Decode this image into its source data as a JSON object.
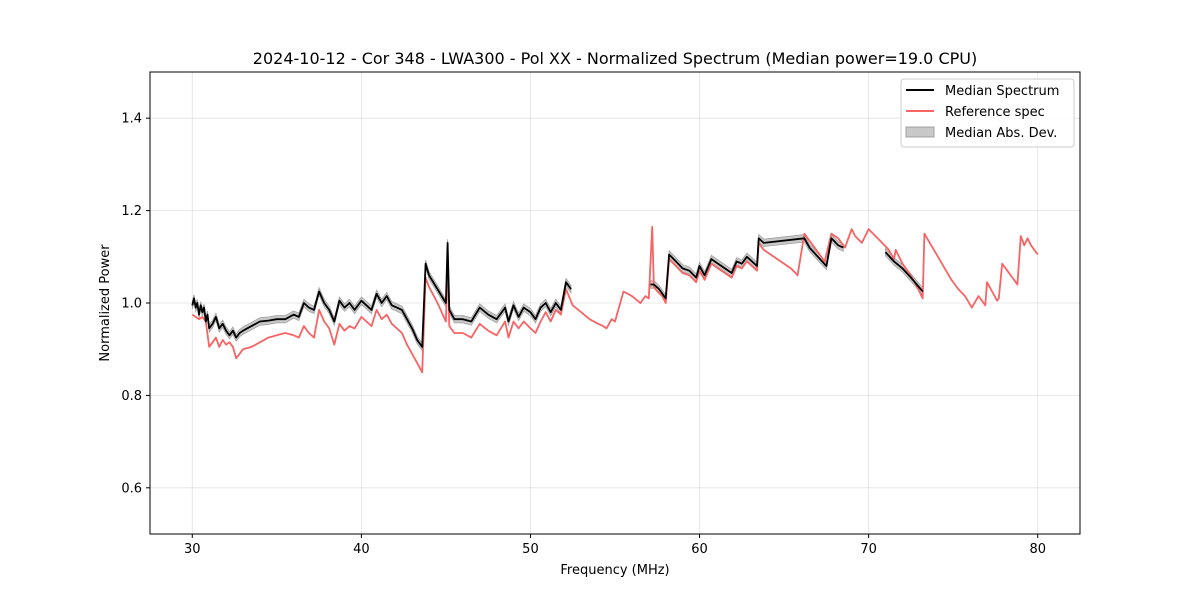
{
  "chart_data": {
    "type": "line",
    "title": "2024-10-12 - Cor 348 - LWA300 - Pol XX - Normalized Spectrum (Median power=19.0 CPU)",
    "xlabel": "Frequency (MHz)",
    "ylabel": "Normalized Power",
    "xlim": [
      27.5,
      82.5
    ],
    "ylim": [
      0.5,
      1.5
    ],
    "xticks": [
      30,
      40,
      50,
      60,
      70,
      80
    ],
    "yticks": [
      0.6,
      0.8,
      1.0,
      1.2,
      1.4
    ],
    "xtick_labels": [
      "30",
      "40",
      "50",
      "60",
      "70",
      "80"
    ],
    "ytick_labels": [
      "0.6",
      "0.8",
      "1.0",
      "1.2",
      "1.4"
    ],
    "grid": true,
    "legend_position": "top-right",
    "legend": [
      "Median Spectrum",
      "Reference spec",
      "Median Abs. Dev."
    ],
    "colors": {
      "median": "#000000",
      "reference": "#f86464",
      "mad_fill": "#c8c8c8",
      "mad_edge": "#a0a0a0"
    },
    "series": [
      {
        "name": "Median Spectrum",
        "segments": [
          {
            "x": [
              30.0,
              30.1,
              30.2,
              30.3,
              30.4,
              30.5,
              30.6,
              30.7,
              30.8,
              30.9,
              31.0,
              31.2,
              31.4,
              31.6,
              31.8,
              32.0,
              32.2,
              32.4,
              32.6,
              32.8,
              33.0,
              33.5,
              34.0,
              34.5,
              35.0,
              35.5,
              36.0,
              36.3,
              36.6,
              36.9,
              37.2,
              37.5,
              37.8,
              38.1,
              38.4,
              38.7,
              39.0,
              39.3,
              39.6,
              40.0,
              40.3,
              40.6,
              40.9,
              41.2,
              41.5,
              41.8,
              42.1,
              42.4,
              42.7,
              43.0,
              43.3,
              43.6,
              43.8,
              44.0,
              44.5,
              45.0,
              45.1,
              45.2,
              45.5,
              46.0,
              46.5,
              47.0,
              47.5,
              48.0,
              48.5,
              48.7,
              49.0,
              49.3,
              49.6,
              50.0,
              50.3,
              50.6,
              50.9,
              51.2,
              51.5,
              51.8,
              52.1,
              52.4
            ],
            "y": [
              0.995,
              1.01,
              0.99,
              1.0,
              0.975,
              0.995,
              0.98,
              0.99,
              0.96,
              0.975,
              0.945,
              0.955,
              0.97,
              0.945,
              0.955,
              0.94,
              0.93,
              0.94,
              0.925,
              0.935,
              0.94,
              0.95,
              0.96,
              0.962,
              0.965,
              0.965,
              0.975,
              0.97,
              1.0,
              0.99,
              0.985,
              1.025,
              1.0,
              0.985,
              0.96,
              1.005,
              0.99,
              1.0,
              0.985,
              1.005,
              0.995,
              0.985,
              1.02,
              1.0,
              1.015,
              0.995,
              0.99,
              0.985,
              0.965,
              0.945,
              0.92,
              0.905,
              1.085,
              1.06,
              1.03,
              1.0,
              1.13,
              0.985,
              0.965,
              0.965,
              0.96,
              0.99,
              0.975,
              0.965,
              0.99,
              0.96,
              0.995,
              0.97,
              0.99,
              0.98,
              0.965,
              0.99,
              1.0,
              0.98,
              1.0,
              0.985,
              1.045,
              1.03
            ]
          },
          {
            "x": [
              57.1,
              57.3,
              57.6,
              58.0,
              58.2,
              58.6,
              59.0,
              59.4,
              59.8,
              60.0,
              60.3,
              60.7,
              61.1,
              61.5,
              61.9,
              62.2,
              62.5,
              62.8,
              63.1,
              63.4,
              63.5,
              63.8,
              66.2,
              66.5,
              67.0,
              67.5,
              67.8,
              68.2,
              68.5
            ],
            "y": [
              1.04,
              1.04,
              1.03,
              1.01,
              1.105,
              1.09,
              1.075,
              1.07,
              1.055,
              1.08,
              1.06,
              1.095,
              1.085,
              1.075,
              1.065,
              1.09,
              1.085,
              1.1,
              1.09,
              1.08,
              1.14,
              1.13,
              1.14,
              1.12,
              1.1,
              1.08,
              1.14,
              1.125,
              1.12
            ]
          },
          {
            "x": [
              71.0,
              71.5,
              72.0,
              72.5,
              73.2
            ],
            "y": [
              1.11,
              1.09,
              1.075,
              1.055,
              1.025
            ]
          }
        ]
      },
      {
        "name": "Reference spec",
        "segments": [
          {
            "x": [
              30.0,
              30.2,
              30.4,
              30.6,
              30.8,
              31.0,
              31.2,
              31.4,
              31.6,
              31.8,
              32.0,
              32.2,
              32.4,
              32.6,
              32.8,
              33.0,
              33.5,
              34.0,
              34.5,
              35.0,
              35.5,
              36.0,
              36.3,
              36.6,
              36.9,
              37.2,
              37.5,
              37.8,
              38.1,
              38.4,
              38.7,
              39.0,
              39.3,
              39.6,
              40.0,
              40.3,
              40.6,
              40.9,
              41.2,
              41.5,
              41.8,
              42.1,
              42.4,
              42.7,
              43.0,
              43.3,
              43.6,
              43.8,
              44.0,
              44.5,
              45.0,
              45.1,
              45.2,
              45.5,
              46.0,
              46.5,
              47.0,
              47.5,
              48.0,
              48.5,
              48.7,
              49.0,
              49.3,
              49.6,
              50.0,
              50.3,
              50.6,
              50.9,
              51.2,
              51.5,
              51.8,
              52.1,
              52.5,
              53.0,
              53.5,
              54.0,
              54.3,
              54.5,
              54.8,
              55.0,
              55.5,
              56.0,
              56.5,
              56.8,
              57.0,
              57.2,
              57.3,
              57.5,
              57.8,
              58.0,
              58.2,
              58.6,
              59.0,
              59.4,
              59.8,
              60.0,
              60.3,
              60.7,
              61.1,
              61.5,
              61.9,
              62.2,
              62.5,
              62.8,
              63.1,
              63.4,
              63.5,
              63.8,
              64.2,
              64.6,
              65.0,
              65.4,
              65.8,
              66.2,
              66.6,
              67.0,
              67.4,
              67.8,
              68.2,
              68.6,
              69.0,
              69.2,
              69.6,
              70.0,
              70.4,
              70.8,
              71.2,
              71.5,
              71.6,
              72.0,
              72.4,
              72.8,
              73.2,
              73.3,
              73.7,
              74.1,
              74.5,
              74.9,
              75.3,
              75.7,
              76.1,
              76.5,
              76.9,
              77.0,
              77.3,
              77.6,
              77.7,
              77.9,
              78.2,
              78.5,
              78.8,
              79.0,
              79.2,
              79.4,
              79.6,
              80.0
            ],
            "y": [
              0.975,
              0.97,
              0.965,
              0.97,
              0.96,
              0.905,
              0.915,
              0.925,
              0.905,
              0.92,
              0.91,
              0.915,
              0.905,
              0.88,
              0.89,
              0.9,
              0.905,
              0.915,
              0.925,
              0.93,
              0.935,
              0.93,
              0.925,
              0.95,
              0.935,
              0.925,
              0.985,
              0.96,
              0.945,
              0.91,
              0.955,
              0.94,
              0.95,
              0.945,
              0.97,
              0.96,
              0.95,
              0.985,
              0.965,
              0.975,
              0.955,
              0.945,
              0.935,
              0.91,
              0.89,
              0.87,
              0.85,
              1.055,
              1.035,
              1.0,
              0.96,
              1.095,
              0.95,
              0.935,
              0.935,
              0.925,
              0.955,
              0.94,
              0.93,
              0.96,
              0.925,
              0.96,
              0.945,
              0.96,
              0.945,
              0.935,
              0.96,
              0.98,
              0.96,
              0.985,
              0.975,
              1.03,
              0.995,
              0.98,
              0.965,
              0.955,
              0.95,
              0.945,
              0.965,
              0.96,
              1.025,
              1.015,
              1.0,
              1.015,
              1.01,
              1.165,
              1.035,
              1.025,
              1.015,
              1.0,
              1.095,
              1.08,
              1.065,
              1.06,
              1.045,
              1.07,
              1.05,
              1.085,
              1.075,
              1.065,
              1.055,
              1.08,
              1.075,
              1.09,
              1.08,
              1.07,
              1.13,
              1.115,
              1.105,
              1.095,
              1.085,
              1.075,
              1.06,
              1.15,
              1.13,
              1.11,
              1.09,
              1.15,
              1.14,
              1.12,
              1.16,
              1.145,
              1.13,
              1.16,
              1.145,
              1.13,
              1.115,
              1.095,
              1.115,
              1.085,
              1.065,
              1.04,
              1.01,
              1.15,
              1.125,
              1.1,
              1.075,
              1.05,
              1.03,
              1.015,
              0.99,
              1.015,
              0.995,
              1.045,
              1.025,
              1.005,
              1.01,
              1.085,
              1.07,
              1.055,
              1.04,
              1.145,
              1.125,
              1.14,
              1.125,
              1.105
            ]
          }
        ]
      }
    ],
    "median_abs_dev": {
      "half_width": 0.008
    }
  }
}
